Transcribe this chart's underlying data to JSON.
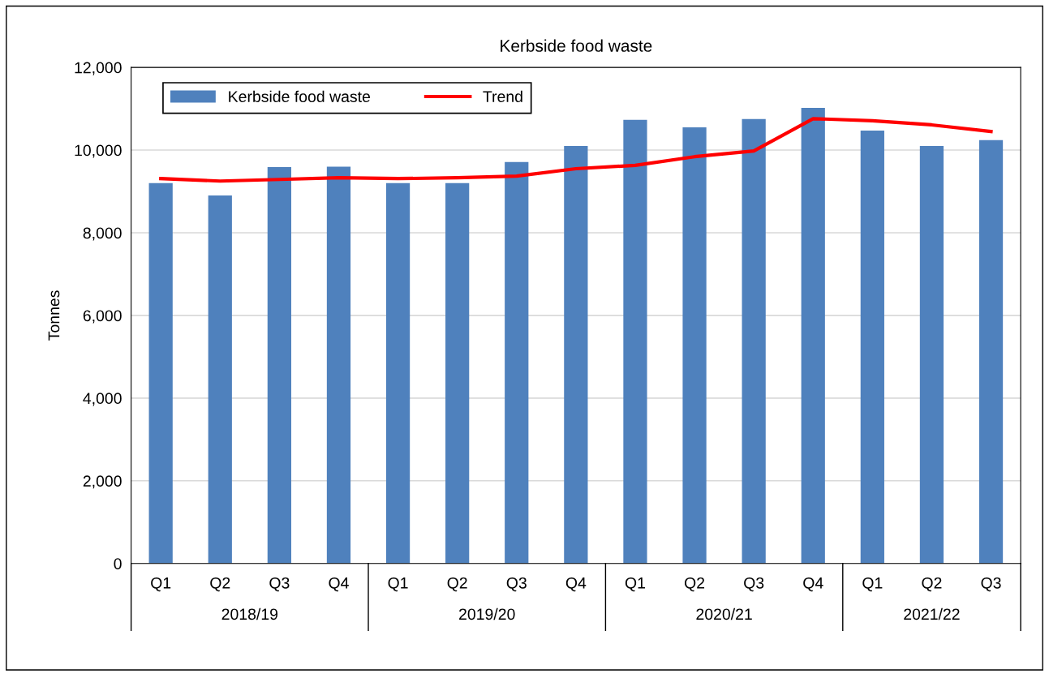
{
  "chart_data": {
    "type": "bar",
    "title": "Kerbside food waste",
    "ylabel": "Tonnes",
    "categories": [
      "Q1",
      "Q2",
      "Q3",
      "Q4",
      "Q1",
      "Q2",
      "Q3",
      "Q4",
      "Q1",
      "Q2",
      "Q3",
      "Q4",
      "Q1",
      "Q2",
      "Q3"
    ],
    "series": [
      {
        "name": "Kerbside food waste",
        "color": "#4f81bd",
        "values": [
          9200,
          8900,
          9590,
          9600,
          9200,
          9200,
          9710,
          10100,
          10730,
          10550,
          10750,
          11020,
          10470,
          10100,
          10240
        ]
      },
      {
        "name": "Trend",
        "type": "line",
        "color": "#ff0000",
        "values": [
          9310,
          9250,
          9290,
          9330,
          9310,
          9330,
          9370,
          9550,
          9630,
          9840,
          9980,
          10760,
          10710,
          10610,
          10450
        ]
      }
    ],
    "annotations": [
      "2018/19",
      "2019/20",
      "2020/21",
      "2021/22"
    ],
    "ylim": [
      0,
      12000
    ],
    "yticks": [
      {
        "value": 0,
        "label": "0"
      },
      {
        "value": 2000,
        "label": "2,000"
      },
      {
        "value": 4000,
        "label": "4,000"
      },
      {
        "value": 6000,
        "label": "6,000"
      },
      {
        "value": 8000,
        "label": "8,000"
      },
      {
        "value": 10000,
        "label": "10,000"
      },
      {
        "value": 12000,
        "label": "12,000"
      }
    ],
    "grid": "y",
    "legend": "top"
  }
}
